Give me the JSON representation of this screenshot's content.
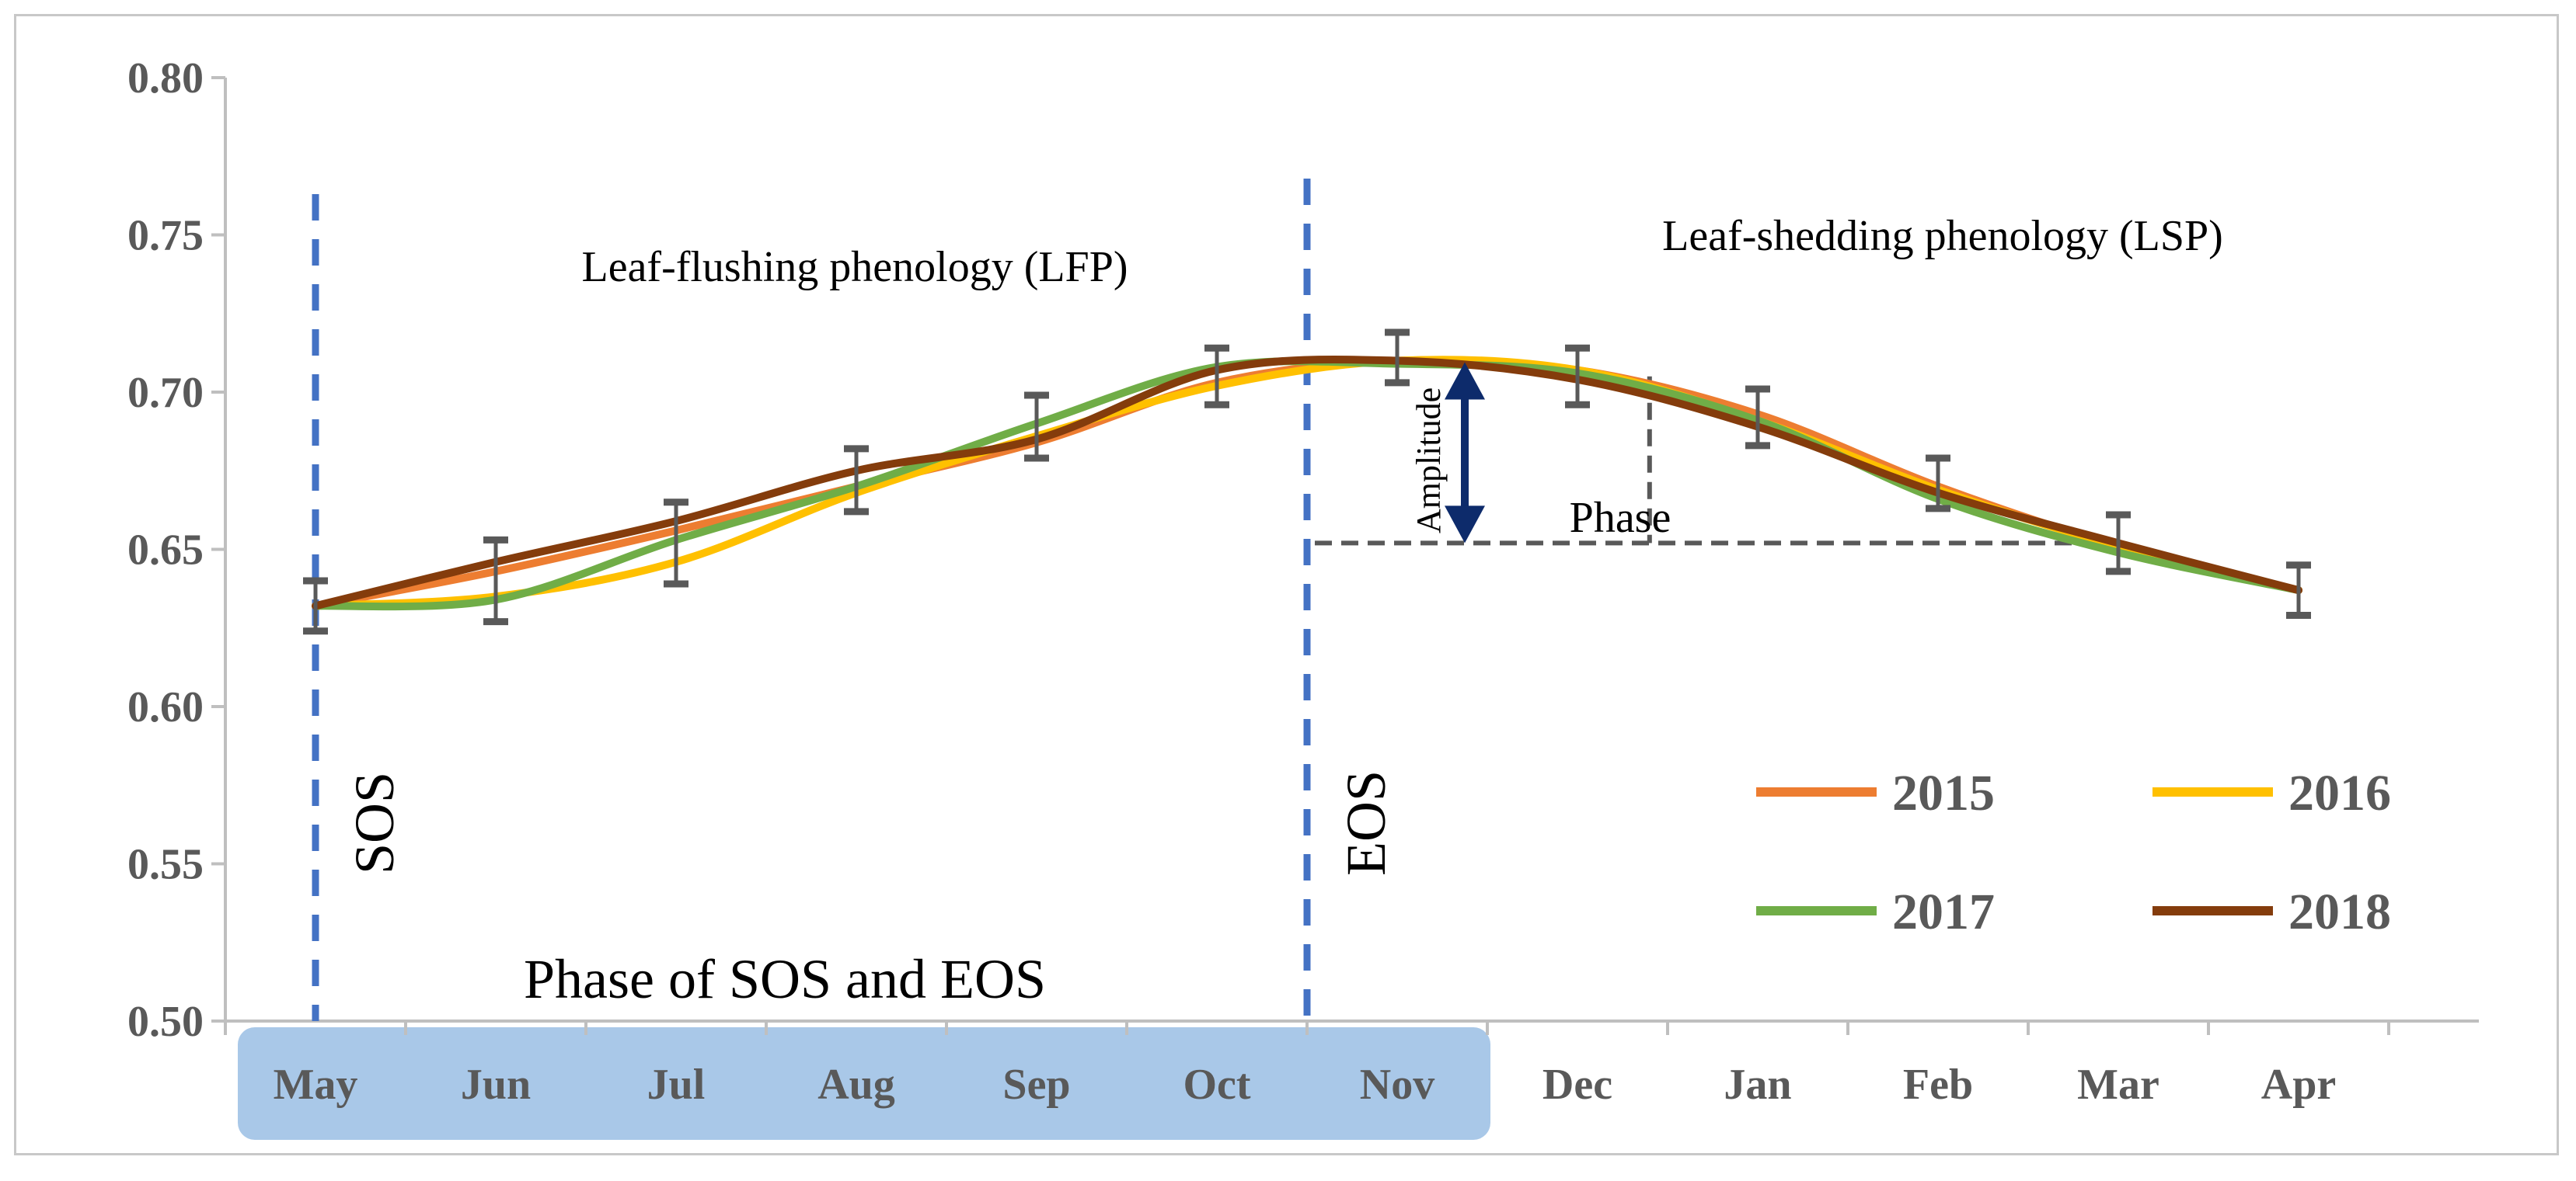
{
  "chart_data": {
    "type": "line",
    "categories": [
      "May",
      "Jun",
      "Jul",
      "Aug",
      "Sep",
      "Oct",
      "Nov",
      "Dec",
      "Jan",
      "Feb",
      "Mar",
      "Apr"
    ],
    "ylim": [
      0.5,
      0.8
    ],
    "yticks": [
      "0.50",
      "0.55",
      "0.60",
      "0.65",
      "0.70",
      "0.75",
      "0.80"
    ],
    "series": [
      {
        "name": "2015",
        "color": "#ED7D31",
        "values": [
          0.632,
          0.643,
          0.656,
          0.67,
          0.684,
          0.703,
          0.71,
          0.707,
          0.693,
          0.67,
          0.651,
          0.637
        ]
      },
      {
        "name": "2016",
        "color": "#FFC000",
        "values": [
          0.632,
          0.635,
          0.646,
          0.668,
          0.686,
          0.702,
          0.71,
          0.707,
          0.691,
          0.669,
          0.651,
          0.637
        ]
      },
      {
        "name": "2017",
        "color": "#70AD47",
        "values": [
          0.632,
          0.634,
          0.653,
          0.67,
          0.69,
          0.708,
          0.709,
          0.706,
          0.691,
          0.666,
          0.649,
          0.637
        ]
      },
      {
        "name": "2018",
        "color": "#843C0C",
        "values": [
          0.632,
          0.646,
          0.659,
          0.675,
          0.685,
          0.707,
          0.71,
          0.704,
          0.689,
          0.668,
          0.652,
          0.637
        ]
      }
    ],
    "error_bars": {
      "center": [
        0.632,
        0.64,
        0.652,
        0.672,
        0.689,
        0.705,
        0.711,
        0.705,
        0.692,
        0.671,
        0.652,
        0.637
      ],
      "half_width": [
        0.008,
        0.013,
        0.013,
        0.01,
        0.01,
        0.009,
        0.008,
        0.009,
        0.009,
        0.008,
        0.009,
        0.008
      ]
    },
    "markers": {
      "sos_label": "SOS",
      "eos_label": "EOS",
      "sos_position": 0,
      "eos_position": 5.5
    },
    "annotations": {
      "lfp": "Leaf-flushing phenology (LFP)",
      "lsp": "Leaf-shedding phenology (LSP)",
      "amplitude": "Amplitude",
      "phase": "Phase",
      "phase_band": "Phase of SOS and EOS",
      "amplitude_range": [
        0.652,
        0.711
      ],
      "phase_level": 0.652,
      "phase_x_range": [
        5.5,
        10.0
      ],
      "phase_vertical_x": 7.9,
      "phase_vertical_top": 0.705
    },
    "colors": {
      "sos_eos_line": "#4472C4",
      "amplitude_arrow": "#0D2B6B",
      "phase_line": "#595959",
      "band": "#A9C8E8",
      "axis": "#bfbfbf",
      "error_bar": "#595959"
    }
  }
}
